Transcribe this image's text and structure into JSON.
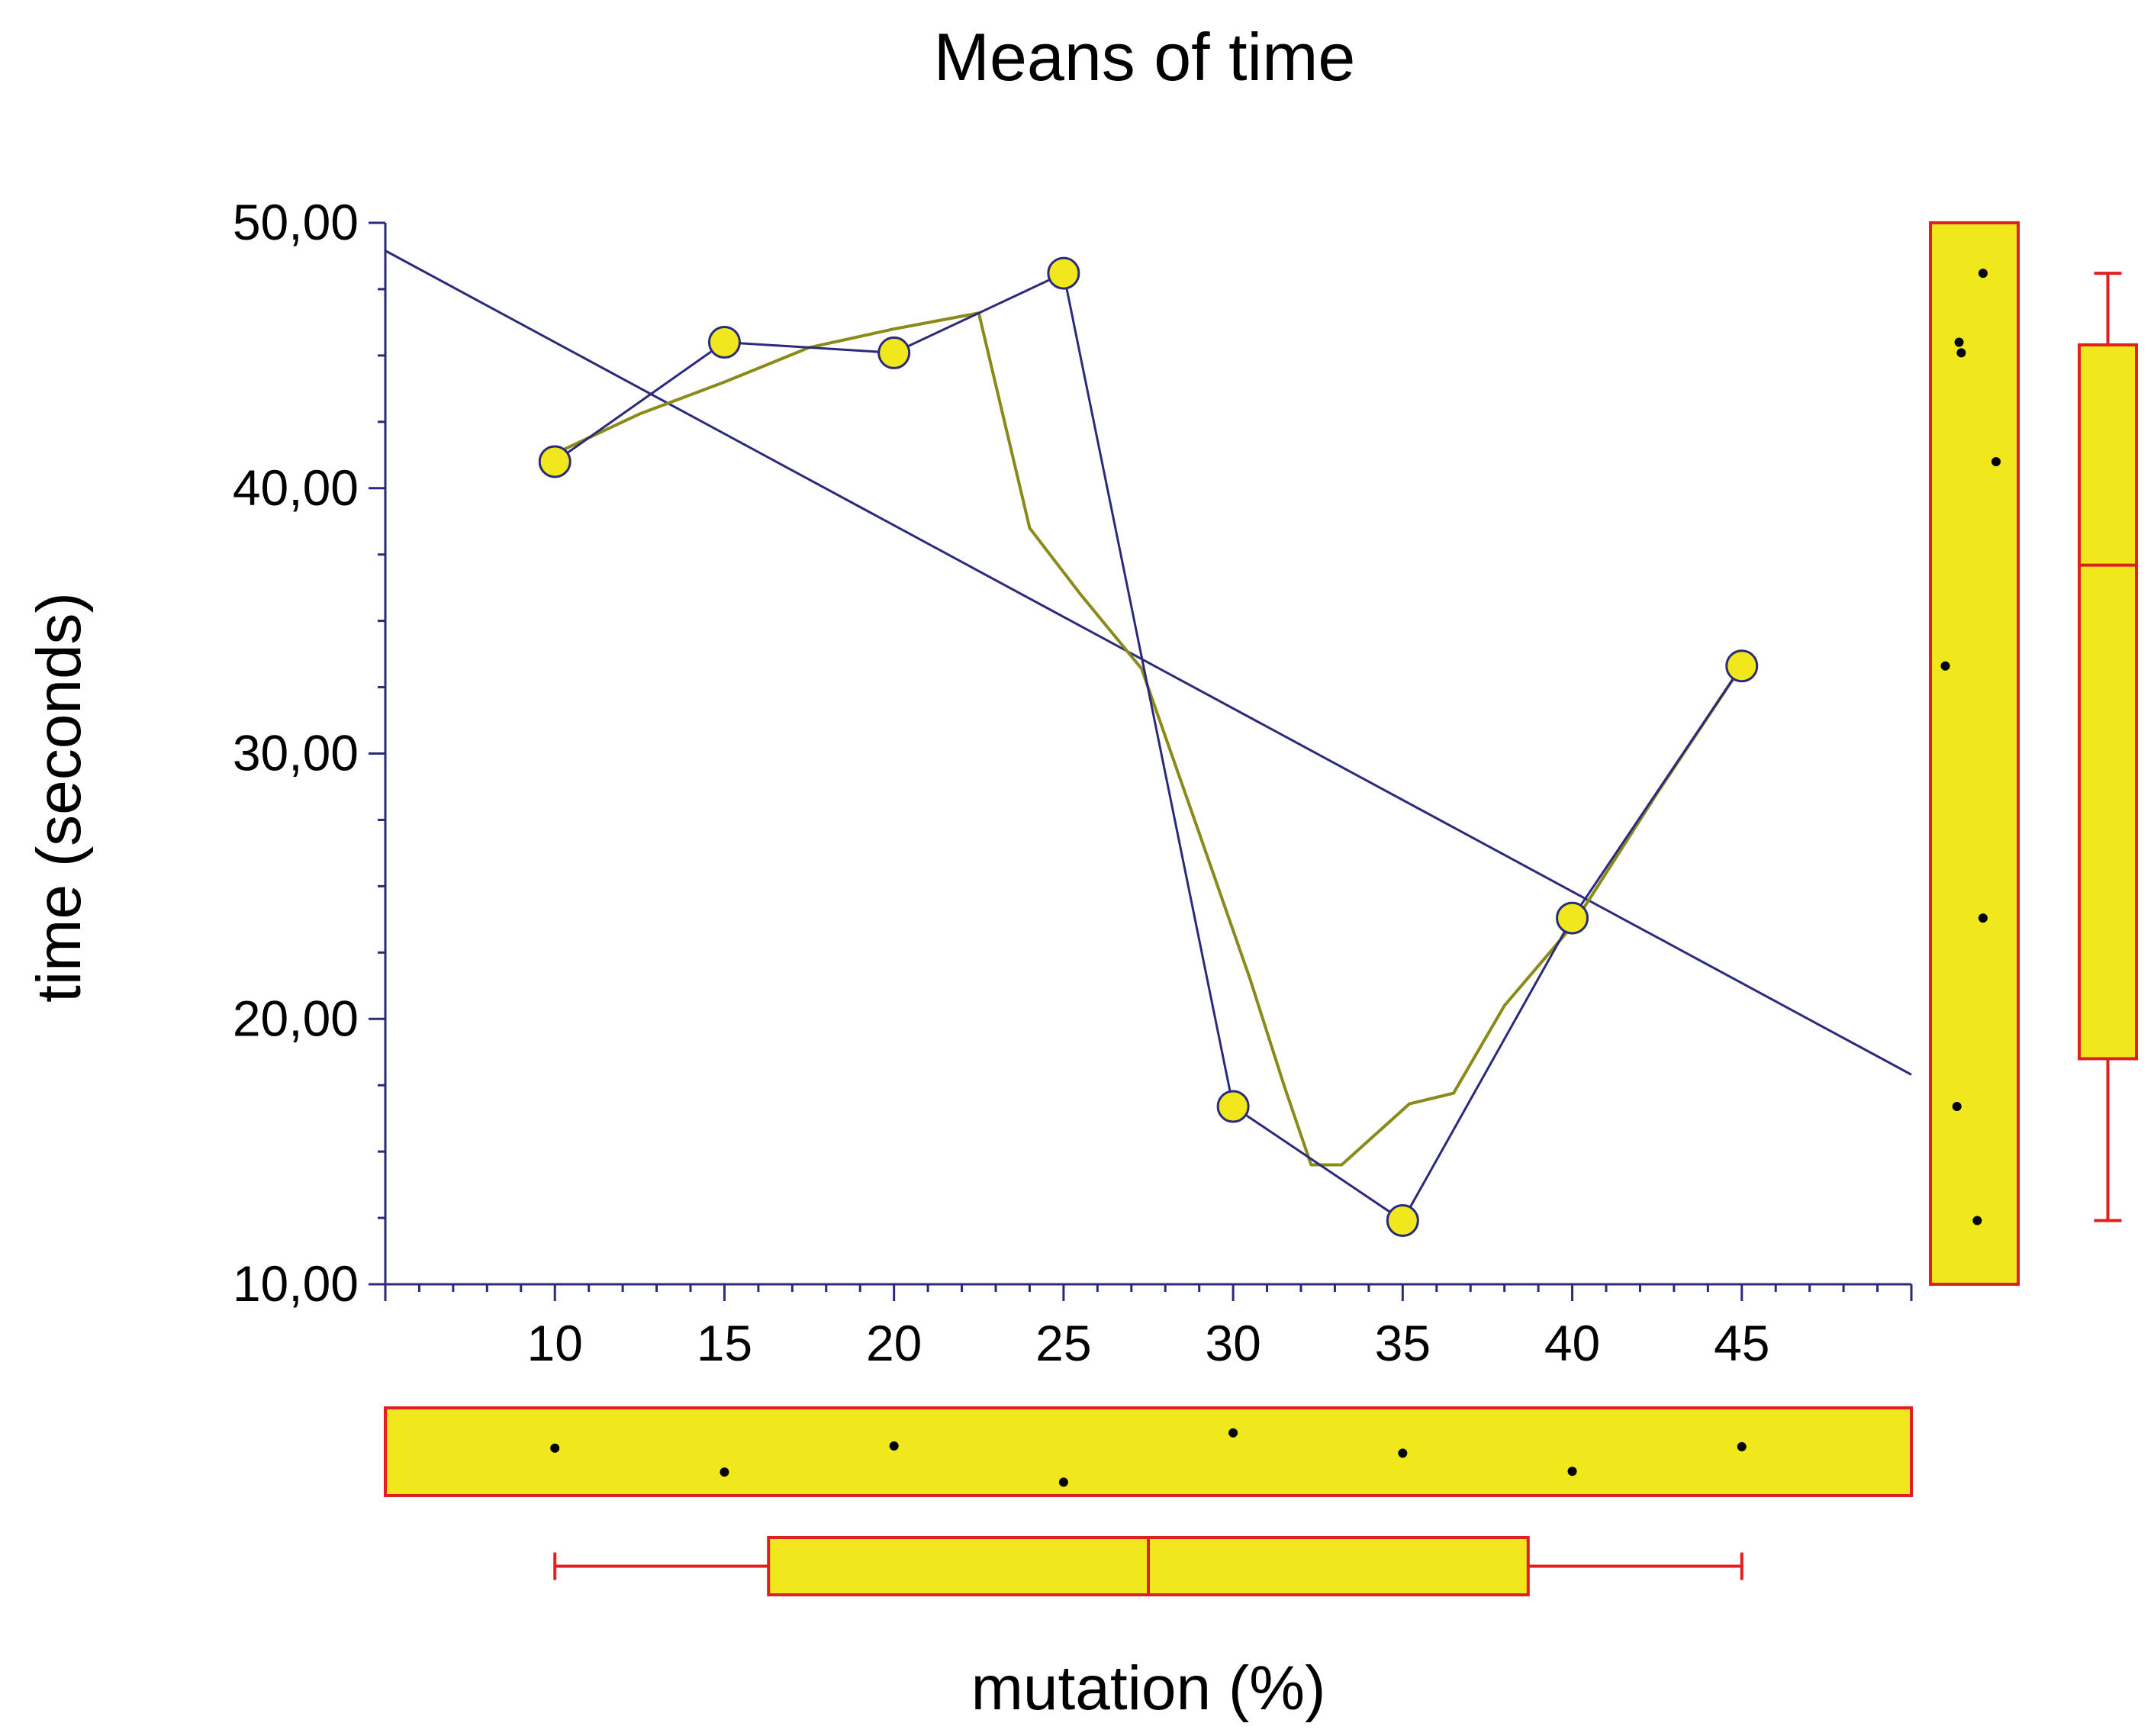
{
  "chart_data": {
    "type": "line",
    "title": "Means of time",
    "xlabel": "mutation (%)",
    "ylabel": "time (seconds)",
    "xlim": [
      5,
      50
    ],
    "ylim": [
      10,
      50
    ],
    "x_ticks": [
      10,
      15,
      20,
      25,
      30,
      35,
      40,
      45
    ],
    "x_tick_labels": [
      "10",
      "15",
      "20",
      "25",
      "30",
      "35",
      "40",
      "45"
    ],
    "y_ticks": [
      10,
      20,
      30,
      40,
      50
    ],
    "y_tick_labels": [
      "10,00",
      "20,00",
      "30,00",
      "40,00",
      "50,00"
    ],
    "series": [
      {
        "name": "means",
        "x": [
          10,
          15,
          20,
          25,
          30,
          35,
          40,
          45
        ],
        "y": [
          41.0,
          45.5,
          45.1,
          48.1,
          16.7,
          12.4,
          23.8,
          33.3
        ]
      }
    ],
    "regression_line": {
      "intercept": 52.4,
      "slope": -0.69
    },
    "smoother": {
      "x": [
        10,
        12.5,
        15,
        17.5,
        20,
        22.5,
        24,
        25.5,
        27.3,
        29,
        30.5,
        31.5,
        32.3,
        33.2,
        35.2,
        36.5,
        38,
        40,
        42.5,
        45
      ],
      "y": [
        41.3,
        42.8,
        44.0,
        45.3,
        46.0,
        46.6,
        38.5,
        36.0,
        33.2,
        27.0,
        21.5,
        17.5,
        14.5,
        14.5,
        16.8,
        17.2,
        20.5,
        23.5,
        28.5,
        33.3
      ]
    },
    "x_boxplot": {
      "min": 10,
      "q1": 16.3,
      "median": 27.5,
      "q3": 38.7,
      "max": 45
    },
    "y_boxplot": {
      "min": 12.4,
      "q1": 18.5,
      "median": 37.1,
      "q3": 45.4,
      "max": 48.1
    },
    "colors": {
      "line": "#2a2a7a",
      "smoother": "#8a8a1a",
      "marker_fill": "#f0e81a",
      "box_fill": "#f0e81a",
      "box_stroke": "#e02020",
      "dot": "#000000"
    }
  }
}
